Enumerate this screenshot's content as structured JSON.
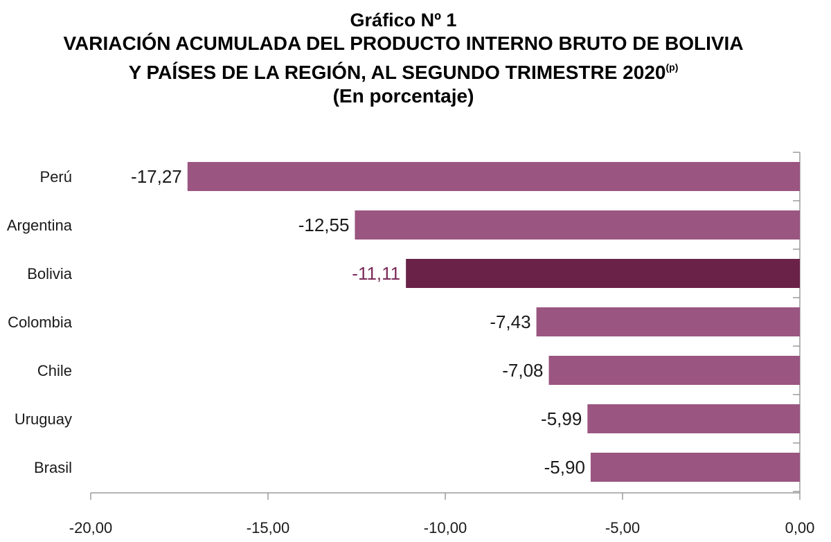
{
  "title": {
    "line1": "Gráfico Nº 1",
    "line2": "VARIACIÓN ACUMULADA DEL PRODUCTO INTERNO BRUTO DE BOLIVIA",
    "line3": "Y PAÍSES DE LA REGIÓN, AL SEGUNDO TRIMESTRE 2020",
    "line3_sup": "(p)",
    "line4": "(En porcentaje)"
  },
  "colors": {
    "bar": "#9a5580",
    "highlight_bar": "#6a2248",
    "highlight_label": "#7a2a58",
    "label": "#1a1a1a",
    "axis": "#9a9a9a"
  },
  "chart_data": {
    "type": "bar",
    "orientation": "horizontal",
    "categories": [
      "Perú",
      "Argentina",
      "Bolivia",
      "Colombia",
      "Chile",
      "Uruguay",
      "Brasil"
    ],
    "values": [
      -17.27,
      -12.55,
      -11.11,
      -7.43,
      -7.08,
      -5.99,
      -5.9
    ],
    "value_labels": [
      "-17,27",
      "-12,55",
      "-11,11",
      "-7,43",
      "-7,08",
      "-5,99",
      "-5,90"
    ],
    "highlight": "Bolivia",
    "xlim": [
      -20,
      0
    ],
    "xticks": [
      -20,
      -15,
      -10,
      -5,
      0
    ],
    "xtick_labels": [
      "-20,00",
      "-15,00",
      "-10,00",
      "-5,00",
      "0,00"
    ],
    "grid": false,
    "legend": "none"
  }
}
